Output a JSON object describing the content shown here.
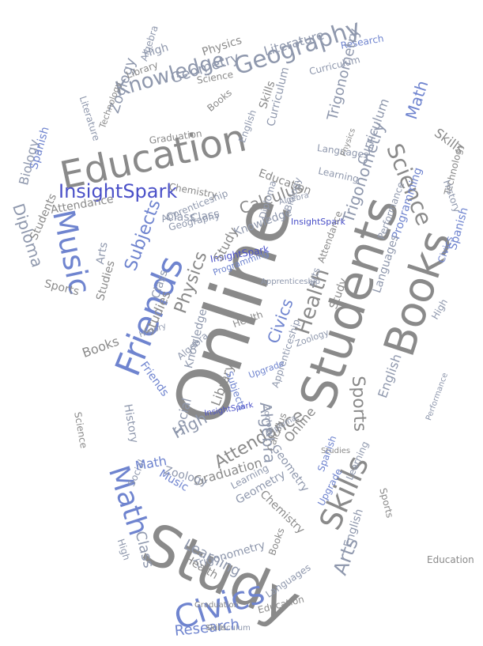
{
  "palette": {
    "gray": "#8a8a8a",
    "steel": "#8f98ad",
    "blue": "#6f84cf",
    "deep_blue": "#4a50c8"
  },
  "words": [
    {
      "text": "Online",
      "color": "gray"
    },
    {
      "text": "Students",
      "color": "gray"
    },
    {
      "text": "Study",
      "color": "gray"
    },
    {
      "text": "Books",
      "color": "gray"
    },
    {
      "text": "Education",
      "color": "gray"
    },
    {
      "text": "Friends",
      "color": "blue"
    },
    {
      "text": "Music",
      "color": "blue"
    },
    {
      "text": "InsightSpark",
      "color": "deep_blue"
    },
    {
      "text": "Civics",
      "color": "blue"
    },
    {
      "text": "Math",
      "color": "blue"
    },
    {
      "text": "Skills",
      "color": "gray"
    },
    {
      "text": "Geography",
      "color": "steel"
    },
    {
      "text": "Knowledge",
      "color": "steel"
    },
    {
      "text": "Health",
      "color": "gray"
    },
    {
      "text": "Science",
      "color": "gray"
    },
    {
      "text": "Attendance",
      "color": "gray"
    },
    {
      "text": "Sports",
      "color": "gray"
    },
    {
      "text": "Diploma",
      "color": "steel"
    },
    {
      "text": "Subjects",
      "color": "blue"
    },
    {
      "text": "Arts",
      "color": "steel"
    },
    {
      "text": "Physics",
      "color": "gray"
    },
    {
      "text": "Trigonometry",
      "color": "steel"
    },
    {
      "text": "Calculus",
      "color": "gray"
    },
    {
      "text": "Research",
      "color": "blue"
    },
    {
      "text": "Class",
      "color": "steel"
    },
    {
      "text": "Learning",
      "color": "steel"
    },
    {
      "text": "Algebra",
      "color": "steel"
    },
    {
      "text": "Graduation",
      "color": "gray"
    },
    {
      "text": "High",
      "color": "steel"
    },
    {
      "text": "Geometry",
      "color": "steel"
    },
    {
      "text": "Literature",
      "color": "steel"
    },
    {
      "text": "Zoology",
      "color": "steel"
    },
    {
      "text": "Biology",
      "color": "steel"
    },
    {
      "text": "Programming",
      "color": "blue"
    },
    {
      "text": "Spanish",
      "color": "blue"
    },
    {
      "text": "Languages",
      "color": "steel"
    },
    {
      "text": "English",
      "color": "steel"
    },
    {
      "text": "Curriculum",
      "color": "steel"
    },
    {
      "text": "Chemistry",
      "color": "gray"
    },
    {
      "text": "Library",
      "color": "gray"
    },
    {
      "text": "Upgrade",
      "color": "blue"
    },
    {
      "text": "History",
      "color": "steel"
    },
    {
      "text": "Social",
      "color": "steel"
    },
    {
      "text": "Performance",
      "color": "steel"
    },
    {
      "text": "Apprenticeship",
      "color": "steel"
    },
    {
      "text": "Studies",
      "color": "gray"
    },
    {
      "text": "Technology",
      "color": "gray"
    }
  ]
}
